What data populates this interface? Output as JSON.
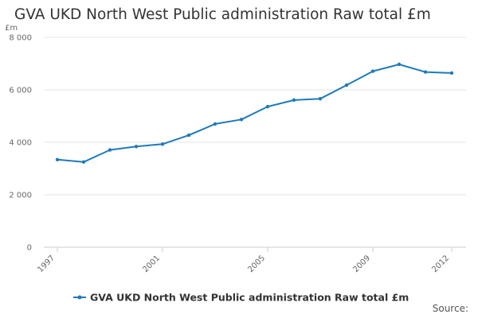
{
  "chart_data": {
    "type": "line",
    "title": "GVA UKD North West Public administration Raw total £m",
    "ylabel": "£m",
    "xlabel": "",
    "ylim": [
      0,
      8000
    ],
    "yticks": [
      0,
      2000,
      4000,
      6000,
      8000
    ],
    "ytick_labels": [
      "0",
      "2 000",
      "4 000",
      "6 000",
      "8 000"
    ],
    "xlim": [
      1997,
      2012
    ],
    "xticks": [
      1997,
      2001,
      2005,
      2009,
      2012
    ],
    "xtick_labels": [
      "1997",
      "2001",
      "2005",
      "2009",
      "2012"
    ],
    "grid": true,
    "legend_position": "bottom",
    "series": [
      {
        "name": "GVA UKD North West Public administration Raw total £m",
        "color": "#1f7ab8",
        "x": [
          1997,
          1998,
          1999,
          2000,
          2001,
          2002,
          2003,
          2004,
          2005,
          2006,
          2007,
          2008,
          2009,
          2010,
          2011,
          2012
        ],
        "values": [
          3340,
          3250,
          3710,
          3840,
          3930,
          4270,
          4700,
          4870,
          5360,
          5610,
          5660,
          6180,
          6710,
          6970,
          6680,
          6640
        ]
      }
    ],
    "source_label": "Source:"
  }
}
